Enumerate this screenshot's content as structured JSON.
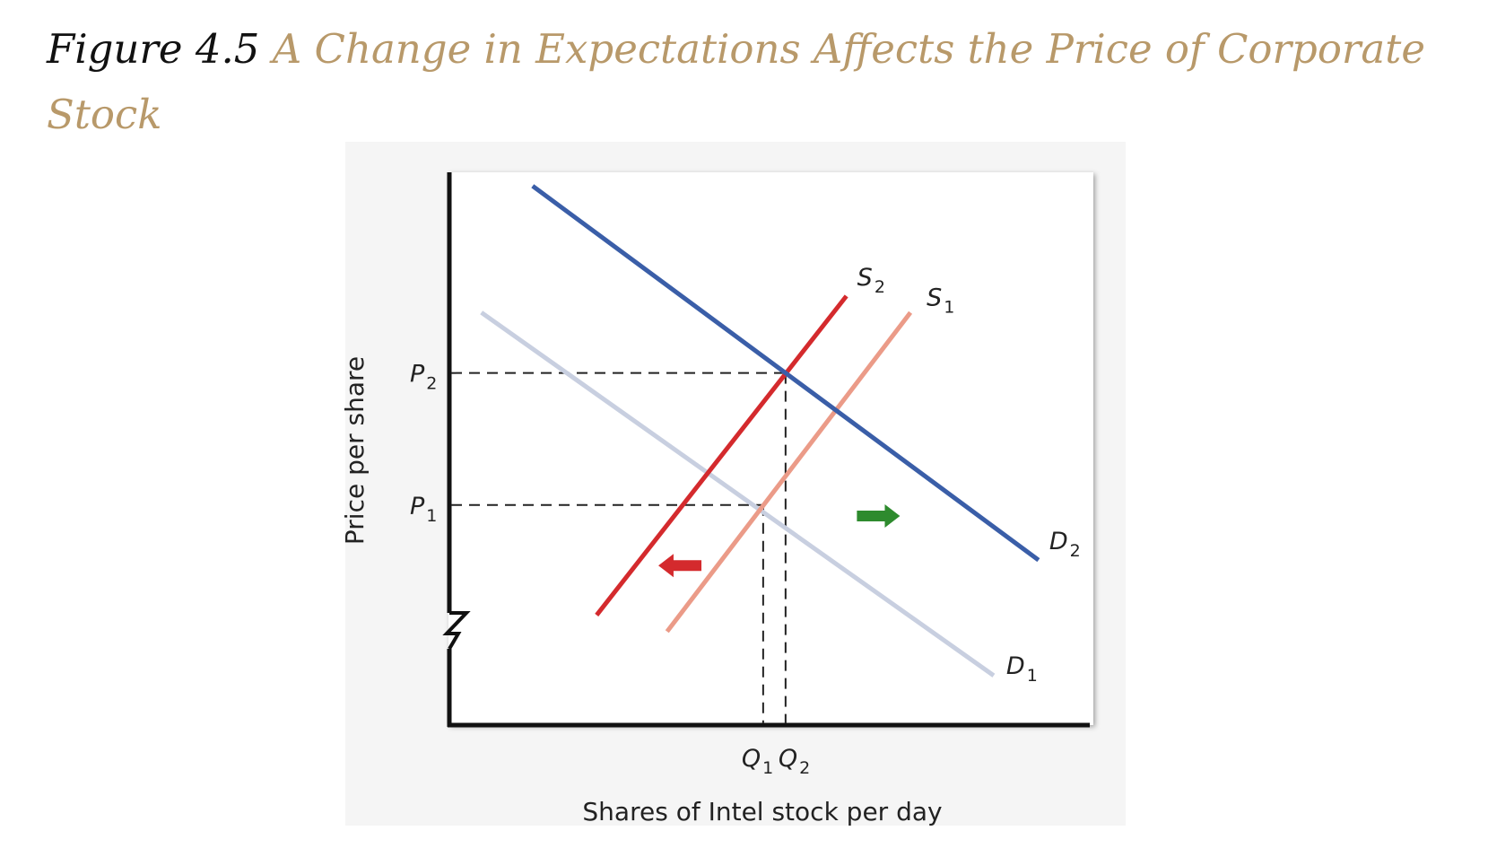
{
  "caption": {
    "label": "Figure 4.5",
    "title": "A Change in Expectations Affects the Price of Corporate Stock"
  },
  "colors": {
    "caption_title": "#b8996a",
    "D1": "#c8cfe0",
    "D2": "#3a5ea8",
    "S1": "#eb9b88",
    "S2": "#d42a2d",
    "left_arrow": "#d42a2d",
    "right_arrow": "#2e8b2e"
  },
  "chart_data": {
    "type": "line",
    "xlabel": "Shares of Intel stock per day",
    "ylabel": "Price per share",
    "xlim": [
      0,
      100
    ],
    "ylim": [
      0,
      100
    ],
    "axis_break": "y",
    "grid": false,
    "series": [
      {
        "name": "D1",
        "label_main": "D",
        "label_sub": "1",
        "x": [
          5,
          85
        ],
        "y": [
          75,
          9
        ]
      },
      {
        "name": "D2",
        "label_main": "D",
        "label_sub": "2",
        "x": [
          13,
          92
        ],
        "y": [
          98,
          30
        ]
      },
      {
        "name": "S1",
        "label_main": "S",
        "label_sub": "1",
        "x": [
          34,
          72
        ],
        "y": [
          17,
          75
        ]
      },
      {
        "name": "S2",
        "label_main": "S",
        "label_sub": "2",
        "x": [
          23,
          62
        ],
        "y": [
          20,
          78
        ]
      }
    ],
    "equilibria": [
      {
        "price_label_main": "P",
        "price_label_sub": "1",
        "quantity_label_main": "Q",
        "quantity_label_sub": "1",
        "x": 49,
        "y": 40
      },
      {
        "price_label_main": "P",
        "price_label_sub": "2",
        "quantity_label_main": "Q",
        "quantity_label_sub": "2",
        "x": 52.5,
        "y": 64
      }
    ],
    "annotations": [
      {
        "kind": "shift-arrow",
        "direction": "left",
        "series": "S",
        "x": 36,
        "y": 29
      },
      {
        "kind": "shift-arrow",
        "direction": "right",
        "series": "D",
        "x": 67,
        "y": 38
      }
    ]
  }
}
